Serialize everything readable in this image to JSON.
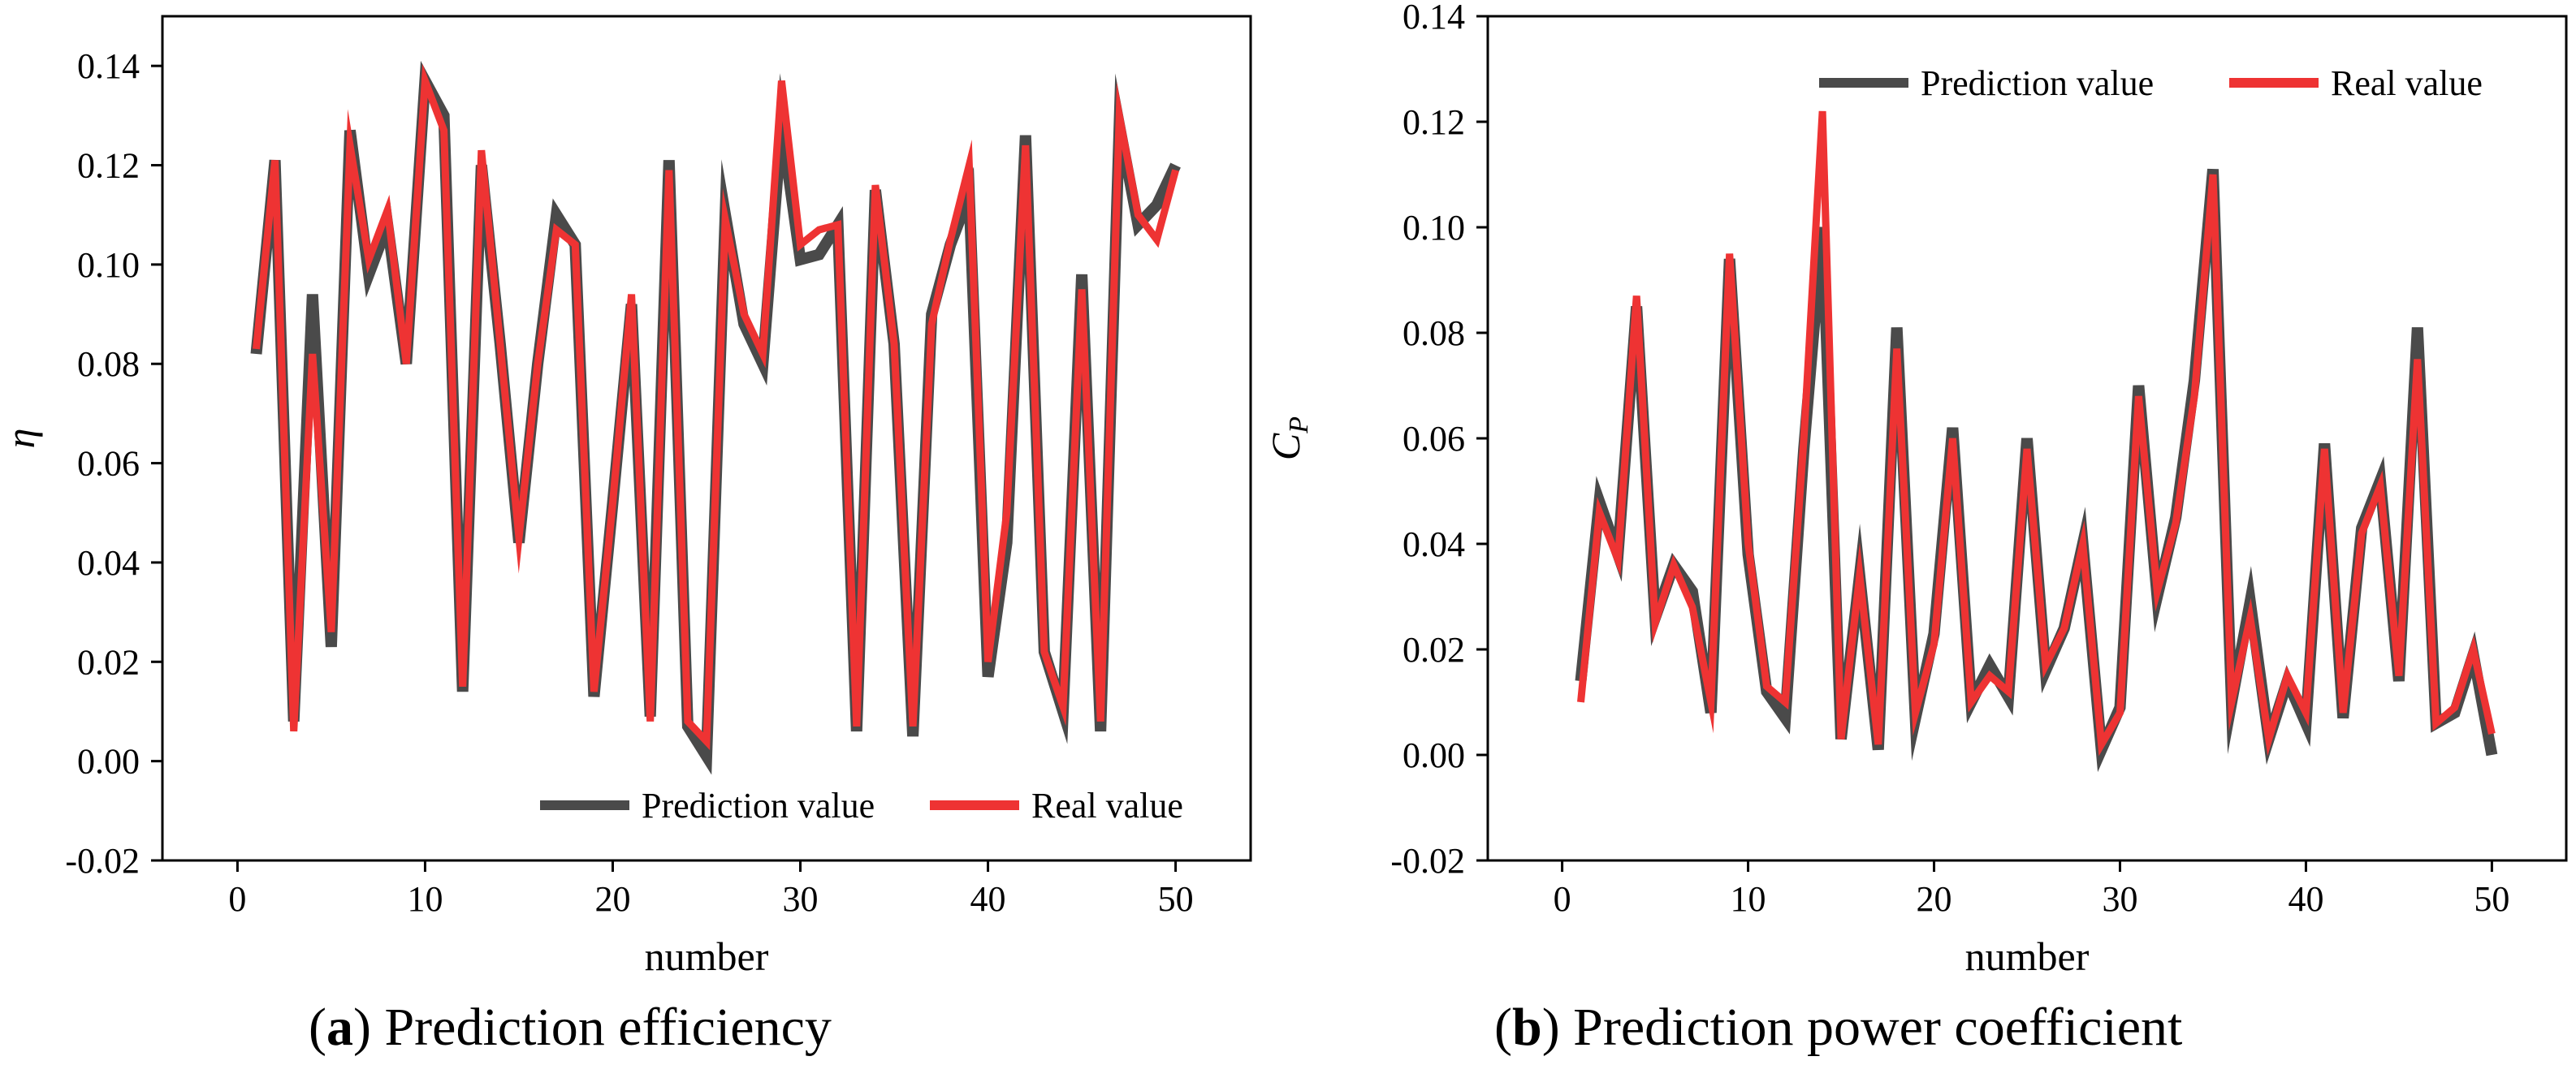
{
  "chart_data": [
    {
      "type": "line",
      "caption_letter": "a",
      "caption_text": ") Prediction efficiency",
      "caption_paren": "(",
      "xlabel": "number",
      "ylabel": "η",
      "xlim": [
        -4,
        54
      ],
      "ylim": [
        -0.02,
        0.15
      ],
      "xticks": [
        0,
        10,
        20,
        30,
        40,
        50
      ],
      "xtick_labels": [
        "0",
        "10",
        "20",
        "30",
        "40",
        "50"
      ],
      "yticks": [
        -0.02,
        0.0,
        0.02,
        0.04,
        0.06,
        0.08,
        0.1,
        0.12,
        0.14
      ],
      "ytick_labels": [
        "-0.02",
        "0.00",
        "0.02",
        "0.04",
        "0.06",
        "0.08",
        "0.10",
        "0.12",
        "0.14"
      ],
      "legend_position": "bottom-right",
      "x": [
        1,
        2,
        3,
        4,
        5,
        6,
        7,
        8,
        9,
        10,
        11,
        12,
        13,
        14,
        15,
        16,
        17,
        18,
        19,
        20,
        21,
        22,
        23,
        24,
        25,
        26,
        27,
        28,
        29,
        30,
        31,
        32,
        33,
        34,
        35,
        36,
        37,
        38,
        39,
        40,
        41,
        42,
        43,
        44,
        45,
        46,
        47,
        48,
        49,
        50
      ],
      "series": [
        {
          "name": "Prediction value",
          "color": "#4a4a4a",
          "values": [
            0.082,
            0.121,
            0.008,
            0.094,
            0.023,
            0.127,
            0.098,
            0.108,
            0.08,
            0.137,
            0.13,
            0.014,
            0.12,
            0.084,
            0.044,
            0.08,
            0.11,
            0.104,
            0.013,
            0.052,
            0.092,
            0.009,
            0.121,
            0.007,
            0.001,
            0.11,
            0.088,
            0.08,
            0.128,
            0.101,
            0.102,
            0.108,
            0.006,
            0.115,
            0.084,
            0.005,
            0.09,
            0.104,
            0.114,
            0.017,
            0.044,
            0.126,
            0.022,
            0.01,
            0.098,
            0.006,
            0.128,
            0.108,
            0.112,
            0.12
          ]
        },
        {
          "name": "Real value",
          "color": "#ee3333",
          "values": [
            0.083,
            0.121,
            0.006,
            0.082,
            0.026,
            0.124,
            0.101,
            0.111,
            0.08,
            0.137,
            0.127,
            0.015,
            0.123,
            0.084,
            0.045,
            0.08,
            0.107,
            0.104,
            0.014,
            0.052,
            0.094,
            0.008,
            0.119,
            0.008,
            0.004,
            0.109,
            0.09,
            0.082,
            0.137,
            0.104,
            0.107,
            0.108,
            0.007,
            0.116,
            0.084,
            0.007,
            0.088,
            0.105,
            0.12,
            0.02,
            0.05,
            0.124,
            0.022,
            0.011,
            0.095,
            0.008,
            0.13,
            0.11,
            0.105,
            0.119
          ]
        }
      ]
    },
    {
      "type": "line",
      "caption_letter": "b",
      "caption_text": ") Prediction power coefficient",
      "caption_paren": "(",
      "xlabel": "number",
      "ylabel": "C",
      "ylabel_sub": "P",
      "xlim": [
        -4,
        54
      ],
      "ylim": [
        -0.02,
        0.14
      ],
      "xticks": [
        0,
        10,
        20,
        30,
        40,
        50
      ],
      "xtick_labels": [
        "0",
        "10",
        "20",
        "30",
        "40",
        "50"
      ],
      "yticks": [
        -0.02,
        0.0,
        0.02,
        0.04,
        0.06,
        0.08,
        0.1,
        0.12,
        0.14
      ],
      "ytick_labels": [
        "-0.02",
        "0.00",
        "0.02",
        "0.04",
        "0.06",
        "0.08",
        "0.10",
        "0.12",
        "0.14"
      ],
      "legend_position": "top-right",
      "x": [
        1,
        2,
        3,
        4,
        5,
        6,
        7,
        8,
        9,
        10,
        11,
        12,
        13,
        14,
        15,
        16,
        17,
        18,
        19,
        20,
        21,
        22,
        23,
        24,
        25,
        26,
        27,
        28,
        29,
        30,
        31,
        32,
        33,
        34,
        35,
        36,
        37,
        38,
        39,
        40,
        41,
        42,
        43,
        44,
        45,
        46,
        47,
        48,
        49,
        50
      ],
      "series": [
        {
          "name": "Prediction value",
          "color": "#4a4a4a",
          "values": [
            0.014,
            0.048,
            0.038,
            0.085,
            0.026,
            0.036,
            0.031,
            0.008,
            0.094,
            0.038,
            0.012,
            0.007,
            0.058,
            0.1,
            0.003,
            0.034,
            0.001,
            0.081,
            0.007,
            0.023,
            0.062,
            0.01,
            0.017,
            0.011,
            0.06,
            0.016,
            0.024,
            0.04,
            0.001,
            0.009,
            0.07,
            0.03,
            0.045,
            0.071,
            0.111,
            0.01,
            0.029,
            0.003,
            0.014,
            0.006,
            0.059,
            0.007,
            0.043,
            0.052,
            0.014,
            0.081,
            0.006,
            0.008,
            0.019,
            0.0
          ]
        },
        {
          "name": "Real value",
          "color": "#ee3333",
          "values": [
            0.01,
            0.046,
            0.037,
            0.087,
            0.025,
            0.036,
            0.028,
            0.01,
            0.095,
            0.04,
            0.013,
            0.01,
            0.06,
            0.122,
            0.003,
            0.034,
            0.002,
            0.077,
            0.008,
            0.021,
            0.06,
            0.01,
            0.015,
            0.012,
            0.058,
            0.017,
            0.024,
            0.04,
            0.002,
            0.008,
            0.068,
            0.031,
            0.044,
            0.068,
            0.11,
            0.01,
            0.026,
            0.003,
            0.015,
            0.008,
            0.058,
            0.008,
            0.042,
            0.051,
            0.015,
            0.075,
            0.006,
            0.009,
            0.02,
            0.004
          ]
        }
      ]
    }
  ]
}
